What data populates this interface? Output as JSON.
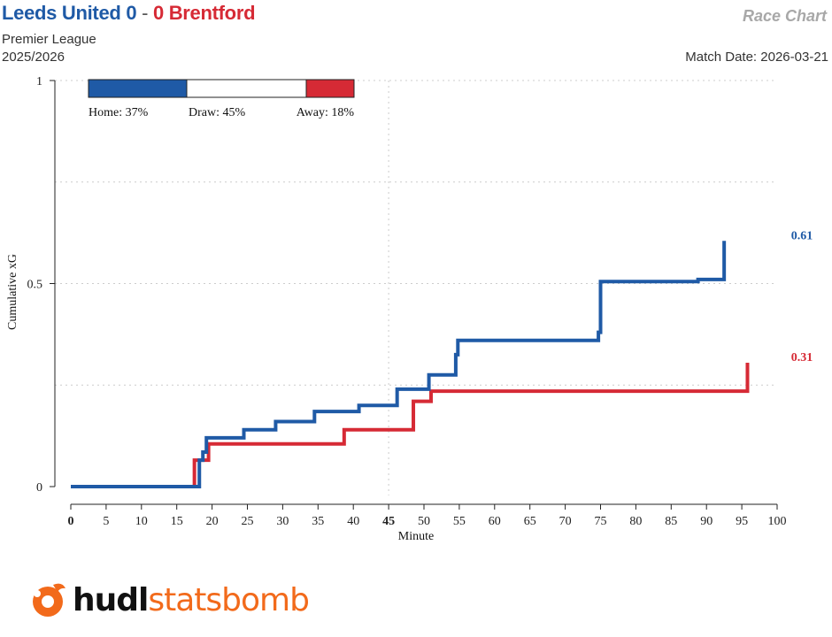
{
  "header": {
    "home_team": "Leeds United",
    "home_score": "0",
    "separator": "-",
    "away_score": "0",
    "away_team": "Brentford",
    "competition": "Premier League",
    "season": "2025/2026",
    "chart_title": "Race Chart",
    "match_date": "Match Date: 2026-03-21"
  },
  "colors": {
    "home": "#1f5aa6",
    "away": "#d62a35",
    "grid": "#cccccc",
    "draw": "#ffffff"
  },
  "probability_bar": {
    "home": 37,
    "draw": 45,
    "away": 18,
    "home_label": "Home: 37%",
    "draw_label": "Draw: 45%",
    "away_label": "Away: 18%"
  },
  "logo": {
    "icon": "statsbomb-logo-icon",
    "text_dark": "hudl",
    "text_orange": "statsbomb"
  },
  "chart_data": {
    "type": "line",
    "xlabel": "Minute",
    "ylabel": "Cumulative xG",
    "xlim": [
      0,
      100
    ],
    "ylim": [
      0,
      1
    ],
    "x_ticks": [
      0,
      5,
      10,
      15,
      20,
      25,
      30,
      35,
      40,
      45,
      50,
      55,
      60,
      65,
      70,
      75,
      80,
      85,
      90,
      95,
      100
    ],
    "y_ticks": [
      0,
      0.5,
      1
    ],
    "y_tick_labels": [
      "0",
      "0.5",
      "1"
    ],
    "halftime_minute": 45,
    "grid": true,
    "series": [
      {
        "team": "home",
        "final_label": "0.61",
        "x": [
          0,
          18.2,
          18.7,
          19.2,
          24.5,
          29,
          34.5,
          40.8,
          46.2,
          50.7,
          54.5,
          54.8,
          74.7,
          75,
          88.8,
          92.5,
          92.5
        ],
        "y": [
          0,
          0.065,
          0.085,
          0.12,
          0.14,
          0.16,
          0.185,
          0.2,
          0.24,
          0.275,
          0.325,
          0.36,
          0.38,
          0.505,
          0.51,
          0.515,
          0.605
        ]
      },
      {
        "team": "away",
        "final_label": "0.31",
        "x": [
          0,
          17.5,
          19.5,
          38.7,
          48.5,
          51,
          95.8,
          95.8
        ],
        "y": [
          0,
          0.065,
          0.105,
          0.14,
          0.21,
          0.235,
          0.24,
          0.305
        ]
      }
    ]
  }
}
